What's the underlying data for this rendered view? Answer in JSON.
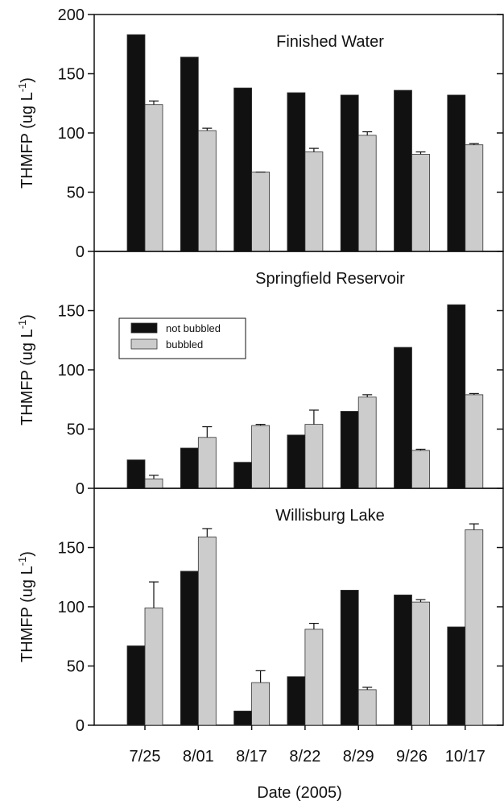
{
  "chart_data": [
    {
      "type": "bar",
      "title": "Finished Water",
      "ylabel": "THMFP (ug L",
      "ylabel_sup": "-1",
      "ylabel_end": ")",
      "ylim": [
        0,
        200
      ],
      "yticks": [
        0,
        50,
        100,
        150,
        200
      ],
      "series": [
        {
          "color": "#111111",
          "values": [
            183,
            164,
            138,
            134,
            132,
            136,
            132
          ]
        },
        {
          "color": "#cccccc",
          "values": [
            124,
            102,
            67,
            84,
            98,
            82,
            90
          ],
          "errors": [
            3,
            2,
            0,
            3,
            3,
            2,
            1
          ]
        }
      ]
    },
    {
      "type": "bar",
      "title": "Springfield Reservoir",
      "ylabel": "THMFP (ug L",
      "ylabel_sup": "-1",
      "ylabel_end": ")",
      "ylim": [
        0,
        200
      ],
      "yticks": [
        0,
        50,
        100,
        150
      ],
      "legend": "upper left",
      "series": [
        {
          "name": "not bubbled",
          "color": "#111111",
          "values": [
            24,
            34,
            22,
            45,
            65,
            119,
            155
          ]
        },
        {
          "name": "bubbled",
          "color": "#cccccc",
          "values": [
            8,
            43,
            53,
            54,
            77,
            32,
            79
          ],
          "errors": [
            3,
            9,
            1,
            12,
            2,
            1,
            1
          ]
        }
      ]
    },
    {
      "type": "bar",
      "title": "Willisburg Lake",
      "ylabel": "THMFP (ug L",
      "ylabel_sup": "-1",
      "ylabel_end": ")",
      "xlabel": "Date (2005)",
      "categories": [
        "7/25",
        "8/01",
        "8/17",
        "8/22",
        "8/29",
        "9/26",
        "10/17"
      ],
      "ylim": [
        0,
        200
      ],
      "yticks": [
        0,
        50,
        100,
        150
      ],
      "series": [
        {
          "color": "#111111",
          "values": [
            67,
            130,
            12,
            41,
            114,
            110,
            83
          ]
        },
        {
          "color": "#cccccc",
          "values": [
            99,
            159,
            36,
            81,
            30,
            104,
            165
          ],
          "errors": [
            22,
            7,
            10,
            5,
            2,
            2,
            5
          ]
        }
      ]
    }
  ]
}
